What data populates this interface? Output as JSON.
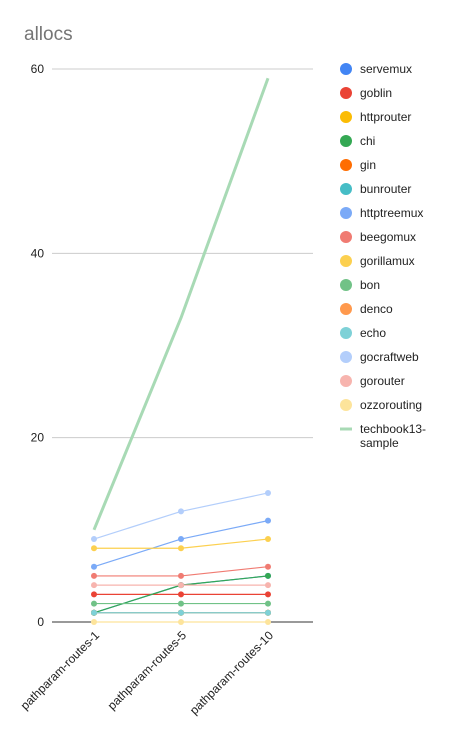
{
  "chart_data": {
    "type": "line",
    "title": "allocs",
    "xlabel": "",
    "ylabel": "",
    "categories": [
      "pathparam-routes-1",
      "pathparam-routes-5",
      "pathparam-routes-10"
    ],
    "ylim": [
      0,
      60
    ],
    "yticks": [
      0,
      20,
      40,
      60
    ],
    "grid": true,
    "legend_position": "right",
    "series": [
      {
        "name": "servemux",
        "color": "#4285f4",
        "values": [
          1,
          4,
          5
        ]
      },
      {
        "name": "goblin",
        "color": "#ea4335",
        "values": [
          3,
          3,
          3
        ]
      },
      {
        "name": "httprouter",
        "color": "#fbbc04",
        "values": [
          1,
          1,
          1
        ]
      },
      {
        "name": "chi",
        "color": "#34a853",
        "values": [
          1,
          4,
          5
        ]
      },
      {
        "name": "gin",
        "color": "#ff6d01",
        "values": [
          1,
          1,
          1
        ]
      },
      {
        "name": "bunrouter",
        "color": "#46bdc6",
        "values": [
          1,
          1,
          1
        ]
      },
      {
        "name": "httptreemux",
        "color": "#7baaf7",
        "values": [
          6,
          9,
          11
        ]
      },
      {
        "name": "beegomux",
        "color": "#f07b72",
        "values": [
          5,
          5,
          6
        ]
      },
      {
        "name": "gorillamux",
        "color": "#fcd04f",
        "values": [
          8,
          8,
          9
        ]
      },
      {
        "name": "bon",
        "color": "#71c287",
        "values": [
          2,
          2,
          2
        ]
      },
      {
        "name": "denco",
        "color": "#ff994d",
        "values": [
          1,
          1,
          1
        ]
      },
      {
        "name": "echo",
        "color": "#7ed1d7",
        "values": [
          1,
          1,
          1
        ]
      },
      {
        "name": "gocraftweb",
        "color": "#b3cefb",
        "values": [
          9,
          12,
          14
        ]
      },
      {
        "name": "gorouter",
        "color": "#f7b4ae",
        "values": [
          4,
          4,
          4
        ]
      },
      {
        "name": "ozzorouting",
        "color": "#fde49b",
        "values": [
          0,
          0,
          0
        ]
      },
      {
        "name": "techbook13-sample",
        "color": "#a8dab5",
        "values": [
          10,
          33,
          59
        ],
        "no_markers": true
      }
    ]
  }
}
